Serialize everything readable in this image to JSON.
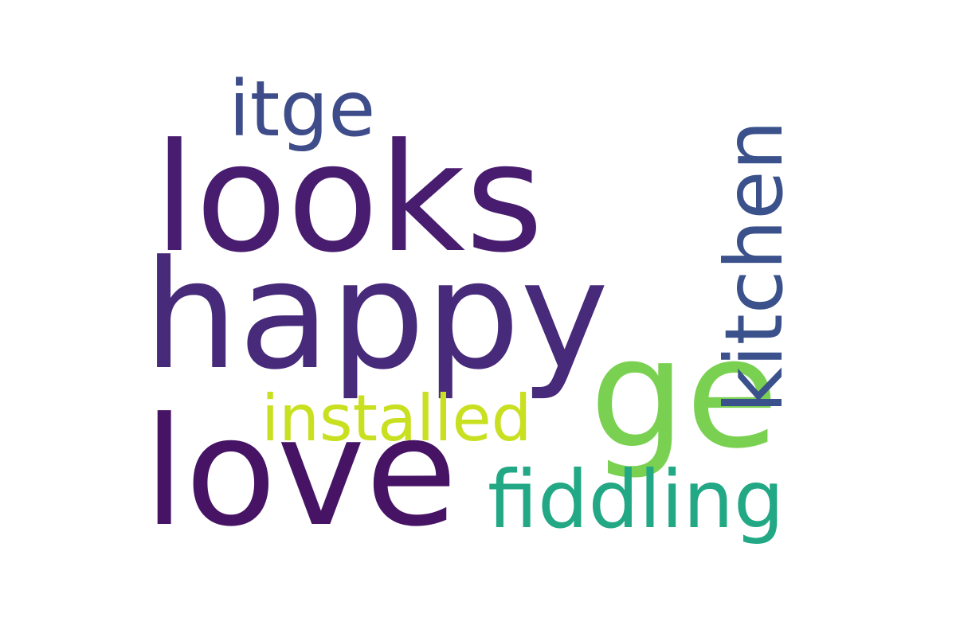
{
  "words": [
    {
      "text": "looks",
      "color": "#481d6f"
    },
    {
      "text": "happy",
      "color": "#472a7a"
    },
    {
      "text": "love",
      "color": "#471365"
    },
    {
      "text": "ge",
      "color": "#7ad151"
    },
    {
      "text": "kitchen",
      "color": "#3b518b"
    },
    {
      "text": "fiddling",
      "color": "#22a884"
    },
    {
      "text": "itge",
      "color": "#3e4c8a"
    },
    {
      "text": "installed",
      "color": "#c8e020"
    }
  ]
}
